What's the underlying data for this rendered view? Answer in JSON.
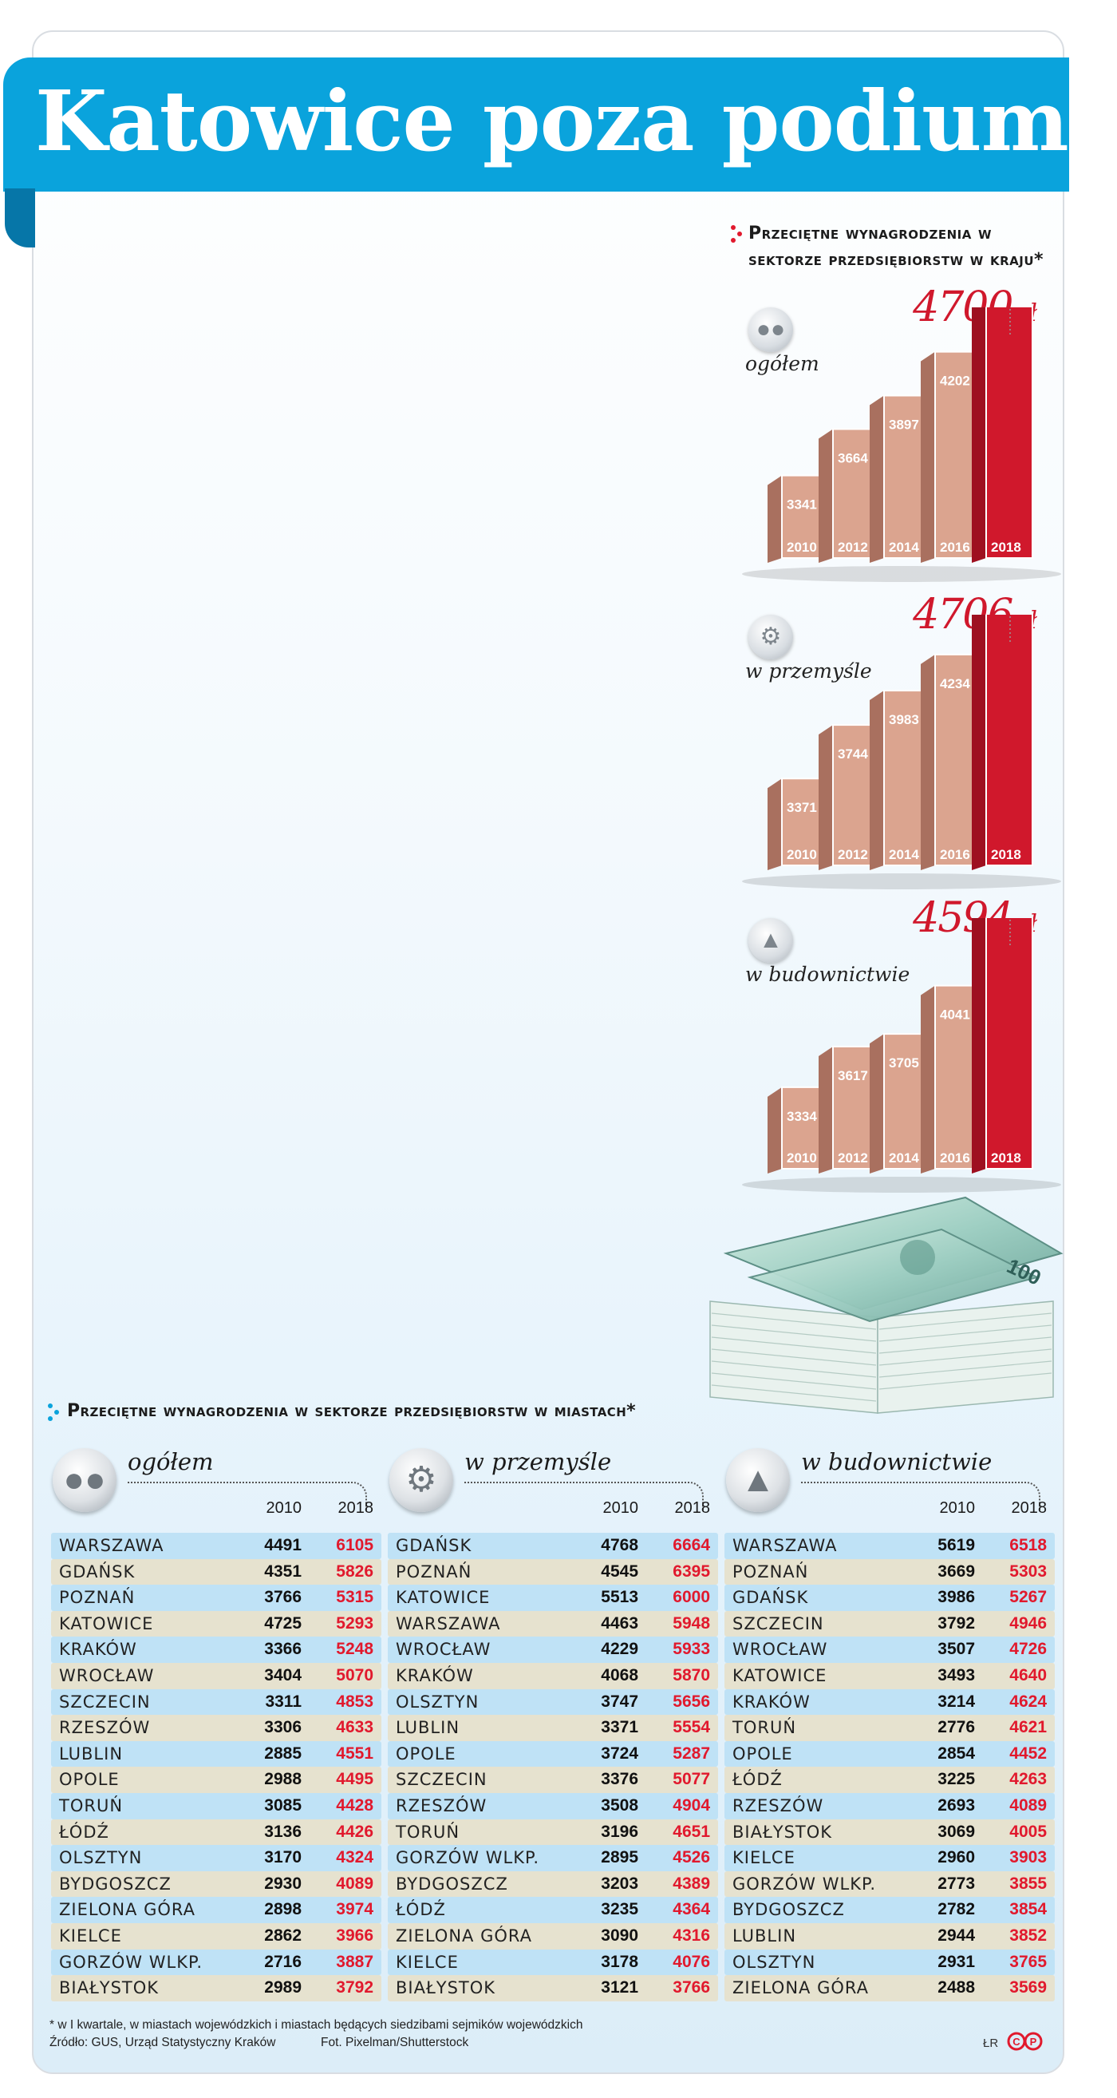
{
  "title": "Katowice poza podium",
  "national": {
    "heading": "Przeciętne wynagrodzenia w sektorze przedsiębiorstw w kraju*",
    "unit": "zł"
  },
  "city_section": {
    "heading": "Przeciętne wynagrodzenia w sektorze przedsiębiorstw w miastach*",
    "year_a": "2010",
    "year_b": "2018"
  },
  "chart_data": [
    {
      "type": "bar",
      "label": "ogółem",
      "icon": "people-icon",
      "categories": [
        "2010",
        "2012",
        "2014",
        "2016",
        "2018"
      ],
      "values": [
        3341,
        3664,
        3897,
        4202,
        4700
      ],
      "highlight": "4700",
      "highlight_color": "#d0182c",
      "bar_color": "#dba48f"
    },
    {
      "type": "bar",
      "label": "w przemyśle",
      "icon": "gear-icon",
      "categories": [
        "2010",
        "2012",
        "2014",
        "2016",
        "2018"
      ],
      "values": [
        3371,
        3744,
        3983,
        4234,
        4706
      ],
      "highlight": "4706",
      "highlight_color": "#d0182c",
      "bar_color": "#dba48f"
    },
    {
      "type": "bar",
      "label": "w budownictwie",
      "icon": "house-icon",
      "categories": [
        "2010",
        "2012",
        "2014",
        "2016",
        "2018"
      ],
      "values": [
        3334,
        3617,
        3705,
        4041,
        4594
      ],
      "highlight": "4594",
      "highlight_color": "#d0182c",
      "bar_color": "#dba48f"
    },
    {
      "type": "table",
      "title": "ogółem",
      "icon": "people-icon",
      "columns": [
        "",
        "2010",
        "2018"
      ],
      "rows": [
        [
          "WARSZAWA",
          4491,
          6105
        ],
        [
          "GDAŃSK",
          4351,
          5826
        ],
        [
          "POZNAŃ",
          3766,
          5315
        ],
        [
          "KATOWICE",
          4725,
          5293
        ],
        [
          "KRAKÓW",
          3366,
          5248
        ],
        [
          "WROCŁAW",
          3404,
          5070
        ],
        [
          "SZCZECIN",
          3311,
          4853
        ],
        [
          "RZESZÓW",
          3306,
          4633
        ],
        [
          "LUBLIN",
          2885,
          4551
        ],
        [
          "OPOLE",
          2988,
          4495
        ],
        [
          "TORUŃ",
          3085,
          4428
        ],
        [
          "ŁÓDŹ",
          3136,
          4426
        ],
        [
          "OLSZTYN",
          3170,
          4324
        ],
        [
          "BYDGOSZCZ",
          2930,
          4089
        ],
        [
          "ZIELONA GÓRA",
          2898,
          3974
        ],
        [
          "KIELCE",
          2862,
          3966
        ],
        [
          "GORZÓW WLKP.",
          2716,
          3887
        ],
        [
          "BIAŁYSTOK",
          2989,
          3792
        ]
      ]
    },
    {
      "type": "table",
      "title": "w przemyśle",
      "icon": "gear-icon",
      "columns": [
        "",
        "2010",
        "2018"
      ],
      "rows": [
        [
          "GDAŃSK",
          4768,
          6664
        ],
        [
          "POZNAŃ",
          4545,
          6395
        ],
        [
          "KATOWICE",
          5513,
          6000
        ],
        [
          "WARSZAWA",
          4463,
          5948
        ],
        [
          "WROCŁAW",
          4229,
          5933
        ],
        [
          "KRAKÓW",
          4068,
          5870
        ],
        [
          "OLSZTYN",
          3747,
          5656
        ],
        [
          "LUBLIN",
          3371,
          5554
        ],
        [
          "OPOLE",
          3724,
          5287
        ],
        [
          "SZCZECIN",
          3376,
          5077
        ],
        [
          "RZESZÓW",
          3508,
          4904
        ],
        [
          "TORUŃ",
          3196,
          4651
        ],
        [
          "GORZÓW WLKP.",
          2895,
          4526
        ],
        [
          "BYDGOSZCZ",
          3203,
          4389
        ],
        [
          "ŁÓDŹ",
          3235,
          4364
        ],
        [
          "ZIELONA GÓRA",
          3090,
          4316
        ],
        [
          "KIELCE",
          3178,
          4076
        ],
        [
          "BIAŁYSTOK",
          3121,
          3766
        ]
      ]
    },
    {
      "type": "table",
      "title": "w budownictwie",
      "icon": "house-icon",
      "columns": [
        "",
        "2010",
        "2018"
      ],
      "rows": [
        [
          "WARSZAWA",
          5619,
          6518
        ],
        [
          "POZNAŃ",
          3669,
          5303
        ],
        [
          "GDAŃSK",
          3986,
          5267
        ],
        [
          "SZCZECIN",
          3792,
          4946
        ],
        [
          "WROCŁAW",
          3507,
          4726
        ],
        [
          "KATOWICE",
          3493,
          4640
        ],
        [
          "KRAKÓW",
          3214,
          4624
        ],
        [
          "TORUŃ",
          2776,
          4621
        ],
        [
          "OPOLE",
          2854,
          4452
        ],
        [
          "ŁÓDŹ",
          3225,
          4263
        ],
        [
          "RZESZÓW",
          2693,
          4089
        ],
        [
          "BIAŁYSTOK",
          3069,
          4005
        ],
        [
          "KIELCE",
          2960,
          3903
        ],
        [
          "GORZÓW WLKP.",
          2773,
          3855
        ],
        [
          "BYDGOSZCZ",
          2782,
          3854
        ],
        [
          "LUBLIN",
          2944,
          3852
        ],
        [
          "OLSZTYN",
          2931,
          3765
        ],
        [
          "ZIELONA GÓRA",
          2488,
          3569
        ]
      ]
    }
  ],
  "footer": {
    "footnote": "* w I kwartale, w miastach wojewódzkich i miastach będących siedzibami sejmików wojewódzkich",
    "source": "Źródło: GUS, Urząd Statystyczny Kraków",
    "photo_credit": "Fot. Pixelman/Shutterstock",
    "author": "ŁR",
    "brand": "cp-logo"
  }
}
